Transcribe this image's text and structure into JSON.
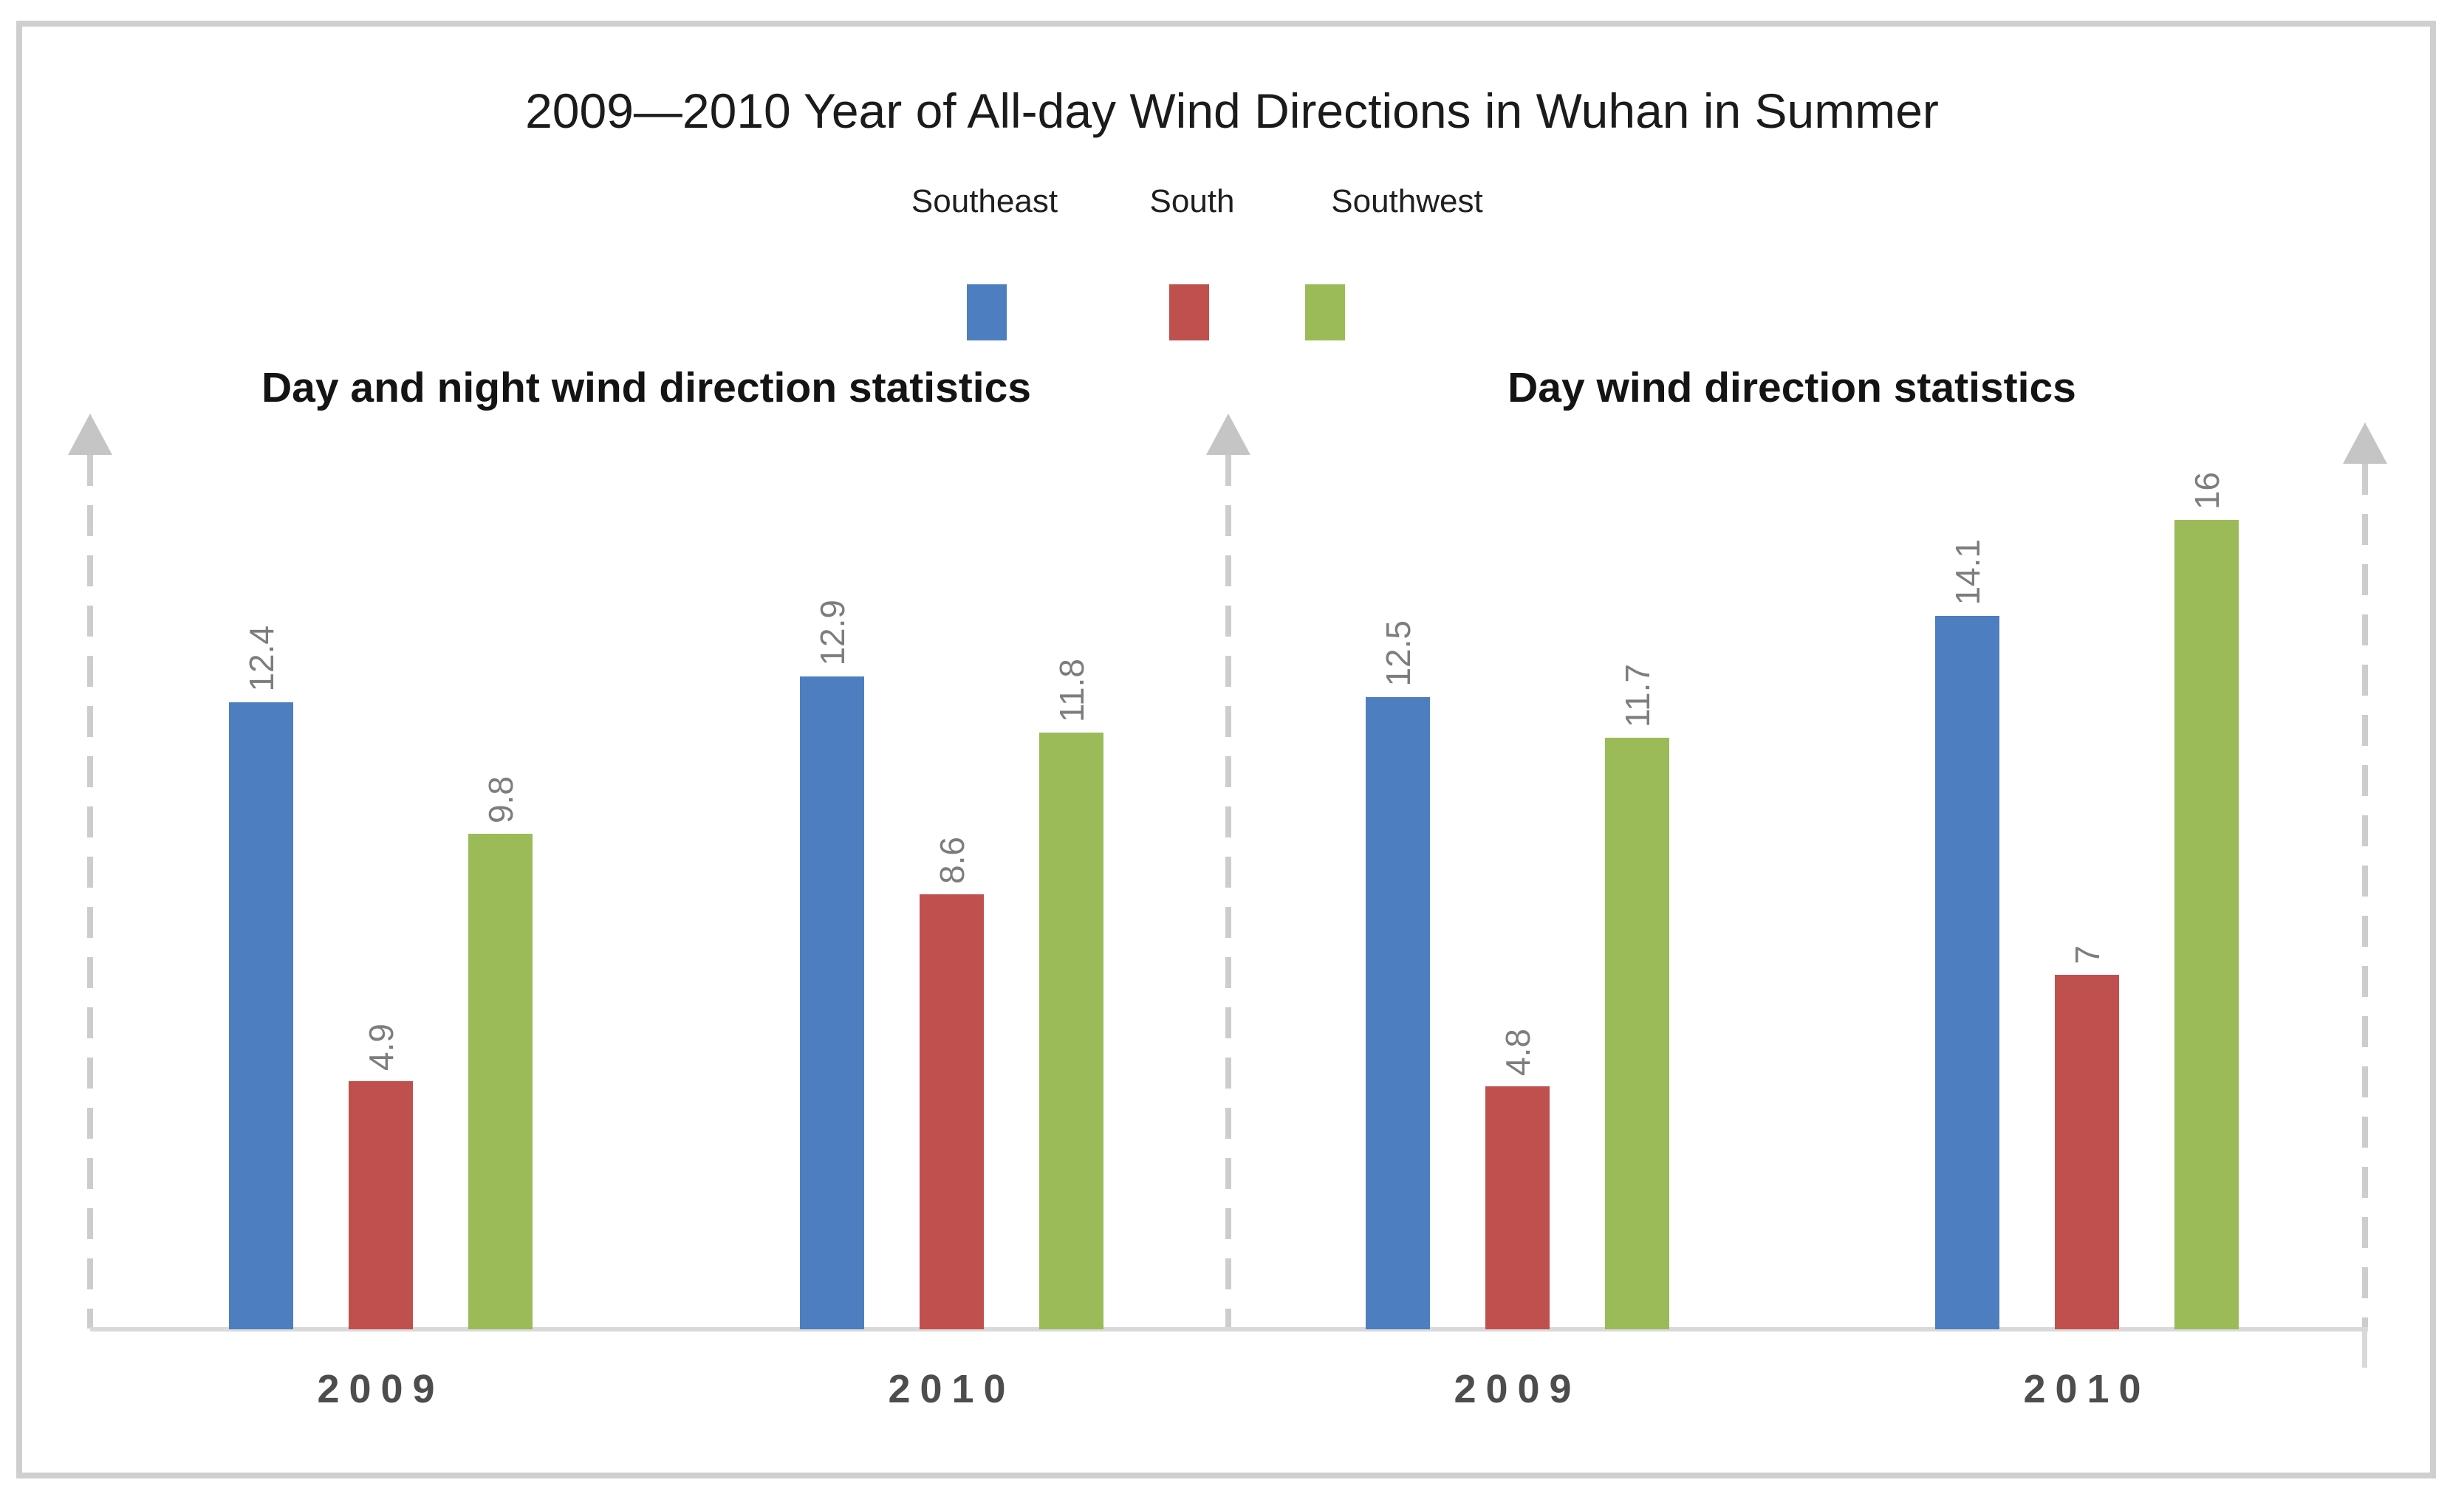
{
  "title": "2009—2010 Year of All-day Wind Directions in Wuhan in Summer",
  "chart_data": {
    "type": "bar",
    "title": "2009—2010 Year of All-day Wind Directions in Wuhan in Summer",
    "legend_position": "top",
    "grid": false,
    "y_axis": "unlabeled dashed upward arrows",
    "value_label_color": "#7d7d7d",
    "legend": [
      {
        "name": "Southeast",
        "color": "#4d7ebf"
      },
      {
        "name": "South",
        "color": "#c0504d"
      },
      {
        "name": "Southwest",
        "color": "#9bbb59"
      }
    ],
    "panels": [
      {
        "title": "Day and night wind direction statistics",
        "categories": [
          "2009",
          "2010"
        ],
        "series": [
          {
            "name": "Southeast",
            "values": [
              12.4,
              12.9
            ]
          },
          {
            "name": "South",
            "values": [
              4.9,
              8.6
            ]
          },
          {
            "name": "Southwest",
            "values": [
              9.8,
              11.8
            ]
          }
        ]
      },
      {
        "title": "Day wind direction statistics",
        "categories": [
          "2009",
          "2010"
        ],
        "series": [
          {
            "name": "Southeast",
            "values": [
              12.5,
              14.1
            ]
          },
          {
            "name": "South",
            "values": [
              4.8,
              7
            ]
          },
          {
            "name": "Southwest",
            "values": [
              11.7,
              16
            ]
          }
        ]
      }
    ]
  }
}
